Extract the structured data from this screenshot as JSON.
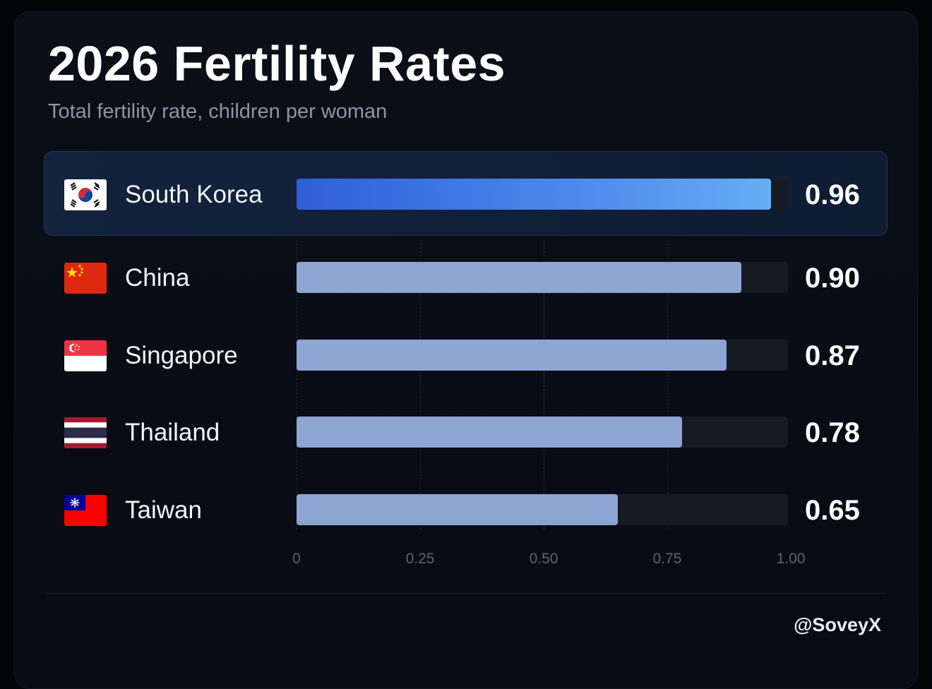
{
  "chart_data": {
    "type": "bar",
    "orientation": "horizontal",
    "title": "2026 Fertility Rates",
    "subtitle": "Total fertility rate, children per woman",
    "categories": [
      "South Korea",
      "China",
      "Singapore",
      "Thailand",
      "Taiwan"
    ],
    "values": [
      0.96,
      0.9,
      0.87,
      0.78,
      0.65
    ],
    "value_labels": [
      "0.96",
      "0.90",
      "0.87",
      "0.78",
      "0.65"
    ],
    "highlighted": "South Korea",
    "xlim": [
      0,
      1.0
    ],
    "xticks": [
      0,
      0.25,
      0.5,
      0.75,
      1.0
    ],
    "xtick_labels": [
      "0",
      "0.25",
      "0.50",
      "0.75",
      "1.00"
    ],
    "grid": "vertical dashed",
    "legend": "none"
  },
  "flags": [
    "south-korea-flag-icon",
    "china-flag-icon",
    "singapore-flag-icon",
    "thailand-flag-icon",
    "taiwan-flag-icon"
  ],
  "colors": {
    "highlight_bar_start": "#2f5fd8",
    "highlight_bar_end": "#64aef4",
    "bar": "#8ea4d2",
    "track": "#161a23",
    "background": "#080b12"
  },
  "footer": {
    "handle": "@SoveyX"
  }
}
